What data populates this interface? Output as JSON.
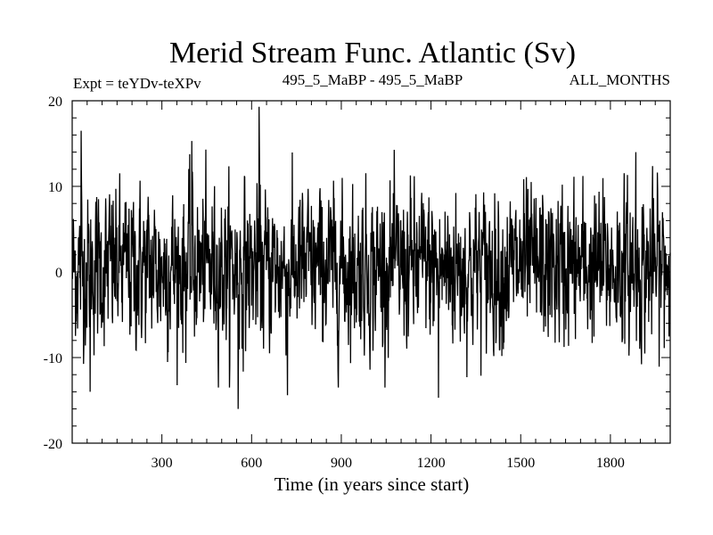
{
  "chart_data": {
    "type": "line",
    "title": "Merid Stream Func. Atlantic (Sv)",
    "subtitle_left": "Expt = teYDv-teXPv",
    "subtitle_center": "495_5_MaBP - 495_5_MaBP",
    "subtitle_right": "ALL_MONTHS",
    "xlabel": "Time (in years since start)",
    "ylabel": "",
    "xlim": [
      0,
      2000
    ],
    "ylim": [
      -20,
      20
    ],
    "x_ticks": [
      300,
      600,
      900,
      1200,
      1500,
      1800
    ],
    "x_tick_labels": [
      "300",
      "600",
      "900",
      "1200",
      "1500",
      "1800"
    ],
    "y_ticks": [
      20,
      10,
      0,
      -10,
      -20
    ],
    "y_tick_labels": [
      "20",
      "10",
      "0",
      "-10",
      "-20"
    ],
    "grid": false,
    "legend": "none",
    "colors": {
      "line": "#000000",
      "axes": "#000000",
      "background": "#ffffff"
    },
    "series": [
      {
        "x_start": 1,
        "x_step": 1,
        "values_note_free": true,
        "peaks": [
          {
            "x": 30,
            "y": 16.5
          },
          {
            "x": 400,
            "y": 15.3
          },
          {
            "x": 625,
            "y": 19.3
          },
          {
            "x": 555,
            "y": -16.0
          },
          {
            "x": 1225,
            "y": -14.7
          },
          {
            "x": 60,
            "y": -14.0
          },
          {
            "x": 720,
            "y": -14.4
          },
          {
            "x": 1885,
            "y": 14.0
          }
        ],
        "mean": 0.5,
        "std": 4.2
      }
    ]
  }
}
